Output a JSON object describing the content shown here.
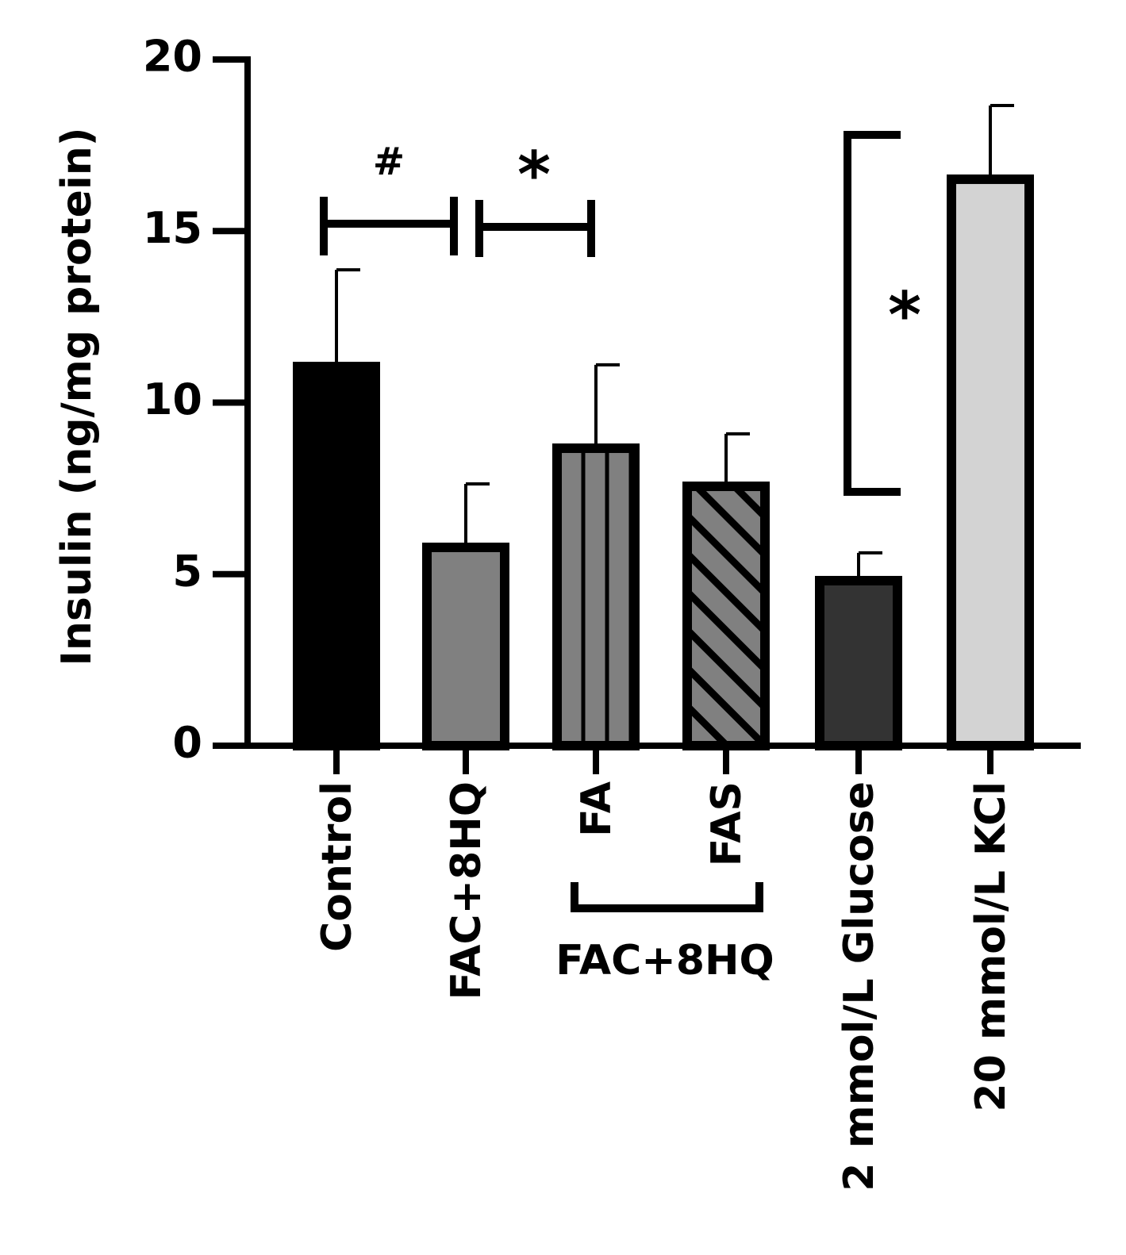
{
  "chart_data": {
    "type": "bar",
    "y_label": "Insulin (ng/mg protein)",
    "categories": [
      "Control",
      "FAC+8HQ",
      "FA",
      "FAS",
      "2 mmol/L Glucose",
      "20 mmol/L KCl"
    ],
    "values": [
      11.05,
      5.78,
      8.67,
      7.56,
      4.81,
      16.51
    ],
    "errors": [
      2.82,
      1.85,
      2.43,
      1.53,
      0.81,
      2.15
    ],
    "colors": [
      "#000000",
      "#808080",
      "#808080",
      "#808080",
      "#333333",
      "#d3d3d3"
    ],
    "hatch": [
      "none",
      "none",
      "vertical",
      "diagonal",
      "none",
      "none"
    ],
    "ylim": [
      0,
      20
    ],
    "yticks": [
      0,
      5,
      10,
      15,
      20
    ],
    "group_label": "FAC+8HQ",
    "annotations": [
      "#",
      "*",
      "*"
    ]
  }
}
